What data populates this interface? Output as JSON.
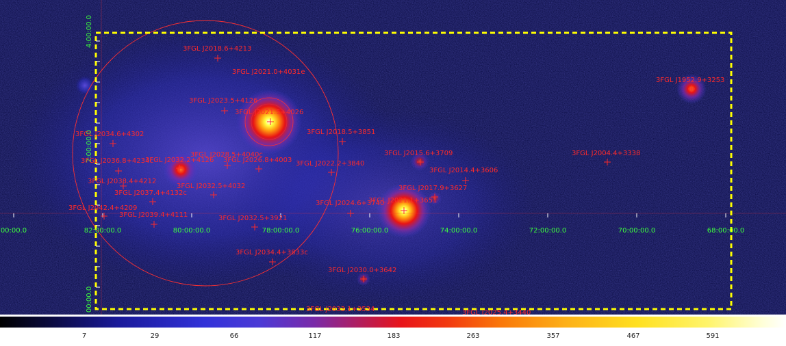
{
  "sources": [
    {
      "label": "3FGL J2018.6+4213"
    },
    {
      "label": "3FGL J2021.0+4031e"
    },
    {
      "label": "3FGL J2023.5+4126"
    },
    {
      "label": "3FGL J2021.5+4026"
    },
    {
      "label": "3FGL J2034.6+4302"
    },
    {
      "label": "3FGL J2018.5+3851"
    },
    {
      "label": "3FGL J2028.5+4040c"
    },
    {
      "label": "3FGL J2036.8+4234c"
    },
    {
      "label": "3FGL J2032.2+4126"
    },
    {
      "label": "3FGL J2026.8+4003"
    },
    {
      "label": "3FGL J2022.2+3840"
    },
    {
      "label": "3FGL J2015.6+3709"
    },
    {
      "label": "3FGL J2014.4+3606"
    },
    {
      "label": "3FGL J2038.4+4212"
    },
    {
      "label": "3FGL J2032.5+4032"
    },
    {
      "label": "3FGL J2037.4+4132c"
    },
    {
      "label": "3FGL J2017.9+3627"
    },
    {
      "label": "3FGL J2042.4+4209"
    },
    {
      "label": "3FGL J2024.6+3740"
    },
    {
      "label": "3FGL J2021.1+3651"
    },
    {
      "label": "3FGL J2039.4+4111"
    },
    {
      "label": "3FGL J2032.5+3921"
    },
    {
      "label": "3FGL J2034.4+3833c"
    },
    {
      "label": "3FGL J2030.0+3642"
    },
    {
      "label": "3FGL J1952.9+3253"
    },
    {
      "label": "3FGL J2004.4+3338"
    },
    {
      "label": "3FGL J2033.1+3534"
    },
    {
      "label": "3FGL J2025.4+3440"
    }
  ],
  "axes": {
    "ra_ticks": [
      "82:00:00.0",
      "80:00:00.0",
      "78:00:00.0",
      "76:00:00.0",
      "74:00:00.0",
      "72:00:00.0",
      "70:00:00.0",
      "68:00:00.0",
      "00:00.0"
    ],
    "dec_ticks": [
      "4:00:00.0",
      "2:00:00.0",
      "00:00.0"
    ]
  },
  "colorbar": {
    "ticks": [
      "7",
      "29",
      "66",
      "117",
      "183",
      "263",
      "357",
      "467",
      "591"
    ]
  },
  "colors": {
    "background": "#06083a",
    "source_marker": "#ff2a2a",
    "axis_text": "#3dff3d",
    "roi_box": "#ffff00"
  }
}
